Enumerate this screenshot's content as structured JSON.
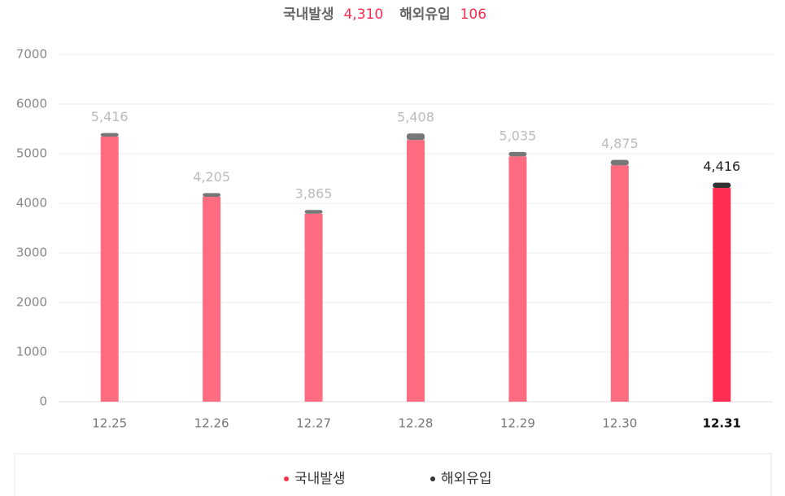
{
  "header": {
    "domestic_label": "국내발생",
    "domestic_value": "4,310",
    "imported_label": "해외유입",
    "imported_value": "106"
  },
  "chart_data": {
    "type": "stacked_bar",
    "categories": [
      "12.25",
      "12.26",
      "12.27",
      "12.28",
      "12.29",
      "12.30",
      "12.31"
    ],
    "series": [
      {
        "name": "국내발생",
        "color": "#ff6b81",
        "colors": [
          "#ff6b81",
          "#ff6b81",
          "#ff6b81",
          "#ff6b81",
          "#ff6b81",
          "#ff6b81",
          "#ff2d4f"
        ],
        "values": [
          5345,
          4130,
          3790,
          5274,
          4945,
          4765,
          4310
        ]
      },
      {
        "name": "해외유입",
        "color": "#777777",
        "colors": [
          "#777777",
          "#777777",
          "#777777",
          "#777777",
          "#777777",
          "#777777",
          "#333333"
        ],
        "values": [
          71,
          75,
          75,
          134,
          90,
          110,
          106
        ]
      }
    ],
    "totals": {
      "values": [
        5416,
        4205,
        3865,
        5408,
        5035,
        4875,
        4416
      ],
      "value_labels": [
        "5,416",
        "4,205",
        "3,865",
        "5,408",
        "5,035",
        "4,875",
        "4,416"
      ]
    },
    "ylim": [
      0,
      7000
    ],
    "yticks": [
      0,
      1000,
      2000,
      3000,
      4000,
      5000,
      6000,
      7000
    ],
    "grid": true
  }
}
